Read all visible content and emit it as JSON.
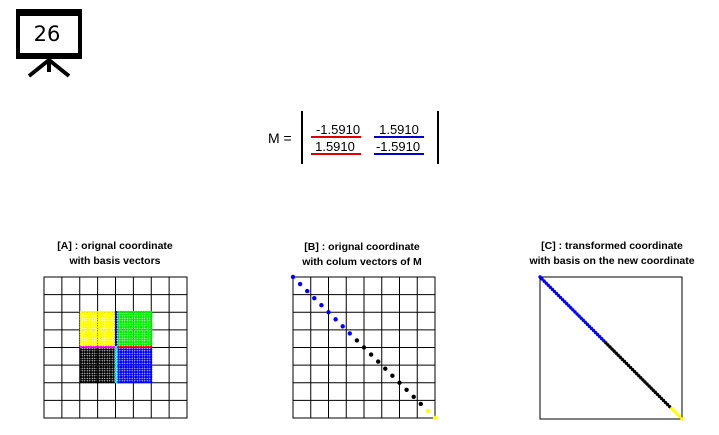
{
  "slide": {
    "number": "26",
    "icon": "presentation-easel-icon"
  },
  "matrix": {
    "label": "M =",
    "rows": [
      [
        "-1.5910",
        "1.5910"
      ],
      [
        "1.5910",
        "-1.5910"
      ]
    ],
    "column_colors": [
      "#dd0000",
      "#0000cc"
    ]
  },
  "panels": [
    {
      "title_line1": "[A] : orignal coordinate",
      "title_line2": "with basis vectors"
    },
    {
      "title_line1": "[B] : orignal coordinate",
      "title_line2": "with colum vectors of M"
    },
    {
      "title_line1": "[C] : transformed coordinate",
      "title_line2": "with basis on the new coordinate"
    }
  ],
  "colors": {
    "quadrant_top_left": "#ffff00",
    "quadrant_top_right": "#00ee00",
    "quadrant_bottom_left": "#000000",
    "quadrant_bottom_right": "#0000ff",
    "basis_x_left": "#ff00ff",
    "basis_x_right": "#ff0000",
    "basis_y_top": "#0000ff",
    "basis_y_bottom": "#00ffff"
  }
}
